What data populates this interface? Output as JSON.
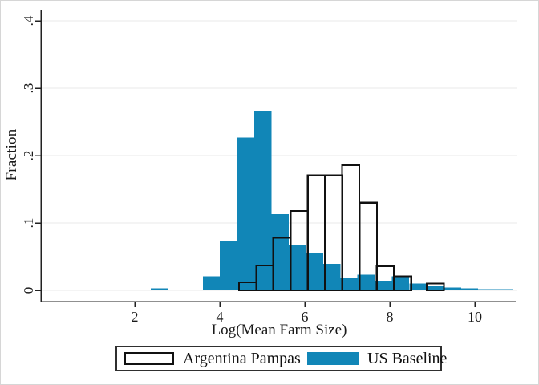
{
  "figure": {
    "background": "#ffffff",
    "frame_color": "#d6d6d6"
  },
  "colors": {
    "us_baseline_blue": "#1186b7",
    "argentina_outline": "#111111",
    "axis": "#222222",
    "grid": "#eaeaea",
    "text": "#1a1a1a"
  },
  "chart_data": {
    "type": "bar",
    "subtype": "overlaid-histograms",
    "title": "",
    "xlabel": "Log(Mean Farm Size)",
    "ylabel": "Fraction",
    "xlim": [
      -0.2,
      11.0
    ],
    "ylim": [
      0,
      0.4
    ],
    "x_ticks": [
      2,
      4,
      6,
      8,
      10
    ],
    "x_tick_labels": [
      "2",
      "4",
      "6",
      "8",
      "10"
    ],
    "y_ticks": [
      0,
      0.1,
      0.2,
      0.3,
      0.4
    ],
    "y_tick_labels": [
      "0",
      ".1",
      ".2",
      ".3",
      ".4"
    ],
    "grid": "horizontal",
    "legend_position": "bottom-center",
    "bin_width": 0.405,
    "series": [
      {
        "name": "Argentina Pampas",
        "style": "outline",
        "fill": "none",
        "stroke": "#111111",
        "bin_starts": [
          4.45,
          4.86,
          5.26,
          5.67,
          6.07,
          6.48,
          6.88,
          7.29,
          7.69,
          8.1,
          8.87
        ],
        "fractions": [
          0.012,
          0.037,
          0.078,
          0.118,
          0.171,
          0.171,
          0.186,
          0.13,
          0.036,
          0.021,
          0.01
        ]
      },
      {
        "name": "US Baseline",
        "style": "filled",
        "fill": "#1186b7",
        "stroke": "none",
        "bin_starts": [
          2.38,
          3.6,
          4.0,
          4.41,
          4.81,
          5.22,
          5.62,
          6.03,
          6.43,
          6.84,
          7.24,
          7.65,
          8.05,
          8.46,
          8.86,
          9.27,
          9.67,
          10.08,
          10.48
        ],
        "fractions": [
          0.003,
          0.021,
          0.073,
          0.227,
          0.266,
          0.113,
          0.067,
          0.056,
          0.039,
          0.019,
          0.023,
          0.014,
          0.021,
          0.01,
          0.006,
          0.004,
          0.003,
          0.002,
          0.002
        ]
      }
    ]
  },
  "legend": {
    "items": [
      {
        "label": "Argentina Pampas",
        "swatch": "white-outlined-box"
      },
      {
        "label": "US Baseline",
        "swatch": "blue-filled-box"
      }
    ]
  }
}
